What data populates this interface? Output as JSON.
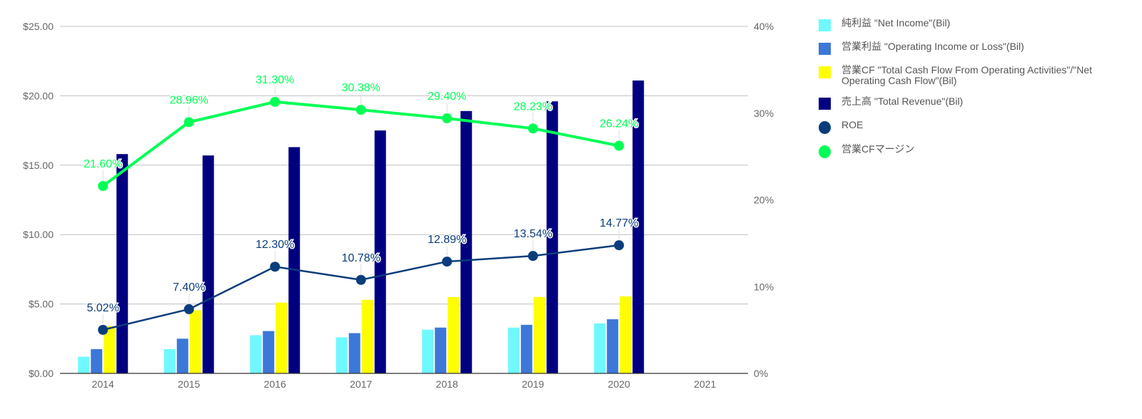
{
  "chart_data": {
    "type": "bar",
    "categories": [
      "2014",
      "2015",
      "2016",
      "2017",
      "2018",
      "2019",
      "2020",
      "2021"
    ],
    "left_axis": {
      "ylim": [
        0,
        25
      ],
      "ticks": [
        {
          "value": 0,
          "label": "$0.00"
        },
        {
          "value": 5,
          "label": "$5.00"
        },
        {
          "value": 10,
          "label": "$10.00"
        },
        {
          "value": 15,
          "label": "$15.00"
        },
        {
          "value": 20,
          "label": "$20.00"
        },
        {
          "value": 25,
          "label": "$25.00"
        }
      ]
    },
    "right_axis": {
      "ylim": [
        0,
        40
      ],
      "ticks": [
        {
          "value": 0,
          "label": "0%"
        },
        {
          "value": 10,
          "label": "10%"
        },
        {
          "value": 20,
          "label": "20%"
        },
        {
          "value": 30,
          "label": "30%"
        },
        {
          "value": 40,
          "label": "40%"
        }
      ]
    },
    "grid": true,
    "legend_position": "right",
    "bar_series": [
      {
        "name": "純利益 \"Net Income\"(Bil)",
        "color": "#6ff9ff",
        "values": [
          1.2,
          1.75,
          2.75,
          2.6,
          3.15,
          3.3,
          3.6,
          null
        ]
      },
      {
        "name": "営業利益 \"Operating Income or Loss\"(Bil)",
        "color": "#3c78d8",
        "values": [
          1.75,
          2.5,
          3.05,
          2.9,
          3.3,
          3.5,
          3.9,
          null
        ]
      },
      {
        "name": "営業CF \"Total Cash Flow From Operating Activities\"/\"Net Operating Cash Flow\"(Bil)",
        "color": "#ffff00",
        "values": [
          3.4,
          4.55,
          5.1,
          5.3,
          5.5,
          5.5,
          5.55,
          null
        ]
      },
      {
        "name": "売上高 \"Total Revenue\"(Bil)",
        "color": "#000080",
        "values": [
          15.8,
          15.7,
          16.3,
          17.5,
          18.9,
          19.6,
          21.1,
          null
        ]
      }
    ],
    "line_series": [
      {
        "name": "ROE",
        "color": "#0b3d7c",
        "axis": "right",
        "values": [
          5.02,
          7.4,
          12.3,
          10.78,
          12.89,
          13.54,
          14.77,
          null
        ],
        "labels": [
          "5.02%",
          "7.40%",
          "12.30%",
          "10.78%",
          "12.89%",
          "13.54%",
          "14.77%",
          ""
        ]
      },
      {
        "name": "営業CFマージン",
        "color": "#00ff55",
        "axis": "right",
        "values": [
          21.6,
          28.96,
          31.3,
          30.38,
          29.4,
          28.23,
          26.24,
          null
        ],
        "labels": [
          "21.60%",
          "28.96%",
          "31.30%",
          "30.38%",
          "29.40%",
          "28.23%",
          "26.24%",
          ""
        ]
      }
    ]
  }
}
